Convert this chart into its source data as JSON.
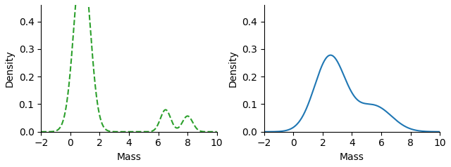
{
  "left_color": "#2ca02c",
  "right_color": "#1f77b4",
  "left_linestyle": "--",
  "right_linestyle": "-",
  "xlabel": "Mass",
  "ylabel": "Density",
  "xlim": [
    -2,
    10
  ],
  "ylim": [
    0,
    0.46
  ],
  "left_yticks": [
    0.0,
    0.1,
    0.2,
    0.3,
    0.4
  ],
  "right_yticks": [
    0.0,
    0.1,
    0.2,
    0.3,
    0.4
  ],
  "left_xticks": [
    -2,
    0,
    2,
    4,
    6,
    8,
    10
  ],
  "right_xticks": [
    -2,
    0,
    2,
    4,
    6,
    8,
    10
  ],
  "left_mixture": {
    "components": [
      {
        "weight": 0.88,
        "mu": 0.8,
        "sigma": 0.55
      },
      {
        "weight": 0.07,
        "mu": 6.5,
        "sigma": 0.35
      },
      {
        "weight": 0.05,
        "mu": 8.0,
        "sigma": 0.35
      }
    ]
  },
  "right_mixture": {
    "components": [
      {
        "weight": 0.72,
        "mu": 2.5,
        "sigma": 1.05
      },
      {
        "weight": 0.28,
        "mu": 5.5,
        "sigma": 1.2
      }
    ]
  },
  "linewidth": 1.5
}
